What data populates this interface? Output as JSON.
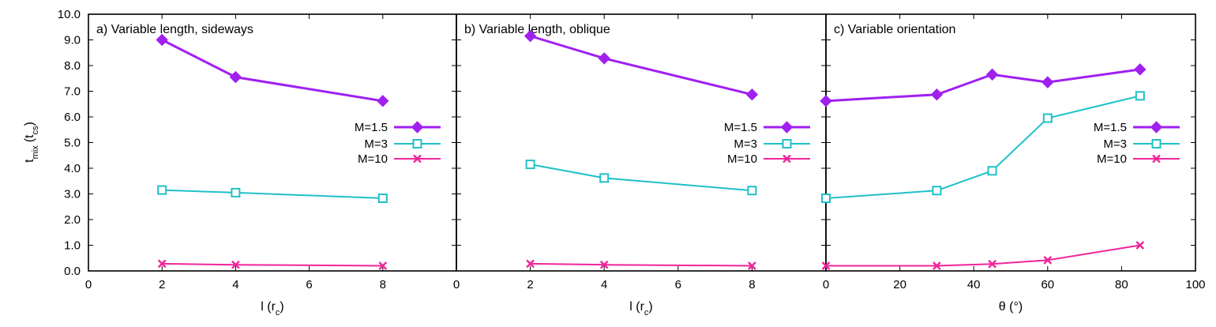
{
  "figure": {
    "ylabel_main": "t",
    "ylabel_sub1": "mix",
    "ylabel_paren_open": "(t",
    "ylabel_sub2": "cs",
    "ylabel_paren_close": ")"
  },
  "colors": {
    "M=1.5": "#a020f0",
    "M=3": "#20c0c8",
    "M=10": "#f0259a",
    "axis": "#000000"
  },
  "chart_data": [
    {
      "type": "line",
      "title": "a) Variable length, sideways",
      "xlabel_main": "l (r",
      "xlabel_sub": "c",
      "xlabel_close": ")",
      "xlim": [
        0,
        10
      ],
      "ylim": [
        0,
        10
      ],
      "xticks": [
        "0",
        "2",
        "4",
        "6",
        "8"
      ],
      "yticks": [
        "0.0",
        "1.0",
        "2.0",
        "3.0",
        "4.0",
        "5.0",
        "6.0",
        "7.0",
        "8.0",
        "9.0",
        "10.0"
      ],
      "legend": [
        "M=1.5",
        "M=3",
        "M=10"
      ],
      "legend_position": "right",
      "x": [
        2,
        4,
        8
      ],
      "series": [
        {
          "name": "M=1.5",
          "marker": "diamond",
          "values": [
            9.0,
            7.55,
            6.62
          ]
        },
        {
          "name": "M=3",
          "marker": "square",
          "values": [
            3.15,
            3.05,
            2.83
          ]
        },
        {
          "name": "M=10",
          "marker": "x",
          "values": [
            0.28,
            0.24,
            0.2
          ]
        }
      ]
    },
    {
      "type": "line",
      "title": "b) Variable length, oblique",
      "xlabel_main": "l (r",
      "xlabel_sub": "c",
      "xlabel_close": ")",
      "xlim": [
        0,
        10
      ],
      "ylim": [
        0,
        10
      ],
      "xticks": [
        "0",
        "2",
        "4",
        "6",
        "8"
      ],
      "yticks": [],
      "legend": [
        "M=1.5",
        "M=3",
        "M=10"
      ],
      "legend_position": "right",
      "x": [
        2,
        4,
        8
      ],
      "series": [
        {
          "name": "M=1.5",
          "marker": "diamond",
          "values": [
            9.15,
            8.28,
            6.87
          ]
        },
        {
          "name": "M=3",
          "marker": "square",
          "values": [
            4.15,
            3.62,
            3.13
          ]
        },
        {
          "name": "M=10",
          "marker": "x",
          "values": [
            0.28,
            0.24,
            0.2
          ]
        }
      ]
    },
    {
      "type": "line",
      "title": "c) Variable orientation",
      "xlabel_main": "θ (°)",
      "xlabel_sub": "",
      "xlabel_close": "",
      "xlim": [
        0,
        100
      ],
      "ylim": [
        0,
        10
      ],
      "xticks": [
        "0",
        "20",
        "40",
        "60",
        "80",
        "100"
      ],
      "yticks": [],
      "legend": [
        "M=1.5",
        "M=3",
        "M=10"
      ],
      "legend_position": "right",
      "x": [
        0,
        30,
        45,
        60,
        85
      ],
      "series": [
        {
          "name": "M=1.5",
          "marker": "diamond",
          "values": [
            6.62,
            6.87,
            7.65,
            7.35,
            7.85
          ]
        },
        {
          "name": "M=3",
          "marker": "square",
          "values": [
            2.83,
            3.13,
            3.9,
            5.95,
            6.82
          ]
        },
        {
          "name": "M=10",
          "marker": "x",
          "values": [
            0.2,
            0.2,
            0.27,
            0.42,
            1.0
          ]
        }
      ]
    }
  ]
}
